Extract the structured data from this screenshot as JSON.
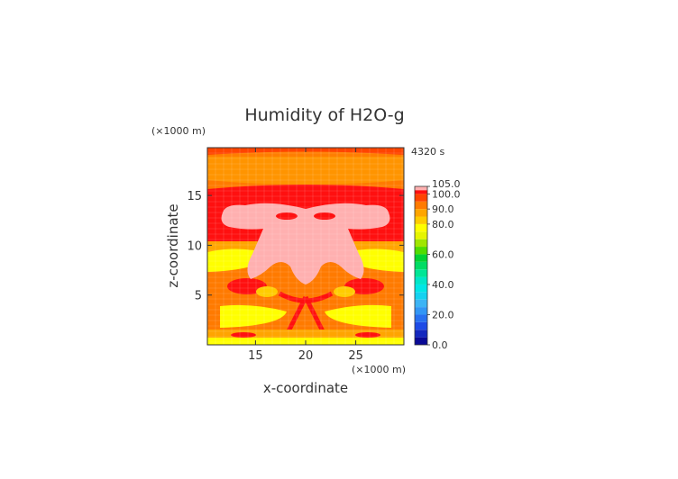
{
  "chart_data": {
    "type": "heatmap",
    "title": "Humidity of H2O-g",
    "xlabel": "x-coordinate",
    "ylabel": "z-coordinate",
    "x_unit": "(×1000 m)",
    "y_unit": "(×1000 m)",
    "time_label": "4320 s",
    "xlim": [
      10.2,
      29.8
    ],
    "ylim": [
      0,
      19.8
    ],
    "x_ticks": [
      {
        "value": 15,
        "label": "15"
      },
      {
        "value": 20,
        "label": "20"
      },
      {
        "value": 25,
        "label": "25"
      }
    ],
    "y_ticks": [
      {
        "value": 5,
        "label": "5"
      },
      {
        "value": 10,
        "label": "10"
      },
      {
        "value": 15,
        "label": "15"
      }
    ],
    "colorbar": {
      "min": 0,
      "max": 105,
      "labels": [
        {
          "value": 0,
          "label": "0.0"
        },
        {
          "value": 20,
          "label": "20.0"
        },
        {
          "value": 40,
          "label": "40.0"
        },
        {
          "value": 60,
          "label": "60.0"
        },
        {
          "value": 80,
          "label": "80.0"
        },
        {
          "value": 90,
          "label": "90.0"
        },
        {
          "value": 100,
          "label": "100.0"
        },
        {
          "value": 105,
          "label": "105.0"
        }
      ],
      "levels": [
        {
          "from": 0,
          "to": 5,
          "color": "#0a0a96"
        },
        {
          "from": 5,
          "to": 10,
          "color": "#1428be"
        },
        {
          "from": 10,
          "to": 15,
          "color": "#1e4be6"
        },
        {
          "from": 15,
          "to": 20,
          "color": "#2870f0"
        },
        {
          "from": 20,
          "to": 25,
          "color": "#3296f5"
        },
        {
          "from": 25,
          "to": 30,
          "color": "#3cb4f5"
        },
        {
          "from": 30,
          "to": 35,
          "color": "#14d2f0"
        },
        {
          "from": 35,
          "to": 40,
          "color": "#00e6e6"
        },
        {
          "from": 40,
          "to": 45,
          "color": "#00e6c8"
        },
        {
          "from": 45,
          "to": 50,
          "color": "#00e696"
        },
        {
          "from": 50,
          "to": 55,
          "color": "#00dc64"
        },
        {
          "from": 55,
          "to": 60,
          "color": "#00d232"
        },
        {
          "from": 60,
          "to": 65,
          "color": "#50dc00"
        },
        {
          "from": 65,
          "to": 70,
          "color": "#a0e600"
        },
        {
          "from": 70,
          "to": 75,
          "color": "#e6f500"
        },
        {
          "from": 75,
          "to": 80,
          "color": "#ffff00"
        },
        {
          "from": 80,
          "to": 85,
          "color": "#ffcc00"
        },
        {
          "from": 85,
          "to": 90,
          "color": "#ffa500"
        },
        {
          "from": 90,
          "to": 95,
          "color": "#ff7a00"
        },
        {
          "from": 95,
          "to": 100,
          "color": "#ff4400"
        },
        {
          "from": 100,
          "to": 102.5,
          "color": "#ff1010"
        },
        {
          "from": 102.5,
          "to": 105,
          "color": "#ffb0b0"
        }
      ]
    },
    "background_value": 90
  }
}
